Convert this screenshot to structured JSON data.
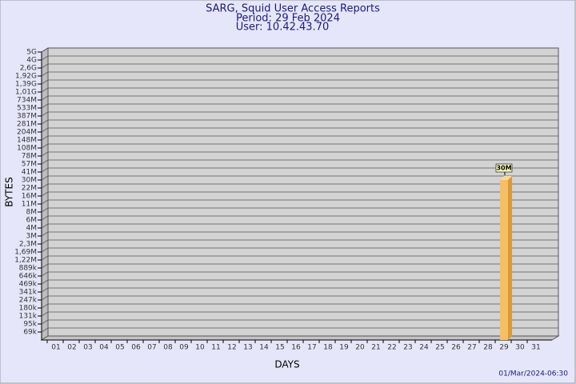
{
  "chart_data": {
    "type": "bar",
    "title": "SARG, Squid User Access Reports",
    "subtitles": [
      "Period: 29 Feb 2024",
      "User: 10.42.43.70"
    ],
    "xlabel": "DAYS",
    "ylabel": "BYTES",
    "footer": "01/Mar/2024-06:30",
    "categories": [
      "01",
      "02",
      "03",
      "04",
      "05",
      "06",
      "07",
      "08",
      "09",
      "10",
      "11",
      "12",
      "13",
      "14",
      "15",
      "16",
      "17",
      "18",
      "19",
      "20",
      "21",
      "22",
      "23",
      "24",
      "25",
      "26",
      "27",
      "28",
      "29",
      "30",
      "31"
    ],
    "values": [
      null,
      null,
      null,
      null,
      null,
      null,
      null,
      null,
      null,
      null,
      null,
      null,
      null,
      null,
      null,
      null,
      null,
      null,
      null,
      null,
      null,
      null,
      null,
      null,
      null,
      null,
      null,
      null,
      30000000,
      null,
      null
    ],
    "value_labels": [
      null,
      null,
      null,
      null,
      null,
      null,
      null,
      null,
      null,
      null,
      null,
      null,
      null,
      null,
      null,
      null,
      null,
      null,
      null,
      null,
      null,
      null,
      null,
      null,
      null,
      null,
      null,
      null,
      "30M",
      null,
      null
    ],
    "color": "#f7bf64",
    "ylim": [
      50000,
      5000000000
    ],
    "yticks": [
      {
        "value": 69000,
        "label": "69k"
      },
      {
        "value": 95000,
        "label": "95k"
      },
      {
        "value": 131000,
        "label": "131k"
      },
      {
        "value": 180000,
        "label": "180k"
      },
      {
        "value": 247000,
        "label": "247k"
      },
      {
        "value": 341000,
        "label": "341k"
      },
      {
        "value": 469000,
        "label": "469k"
      },
      {
        "value": 646000,
        "label": "646k"
      },
      {
        "value": 889000,
        "label": "889k"
      },
      {
        "value": 1220000,
        "label": "1,22M"
      },
      {
        "value": 1690000,
        "label": "1,69M"
      },
      {
        "value": 2300000,
        "label": "2,3M"
      },
      {
        "value": 3000000,
        "label": "3M"
      },
      {
        "value": 4000000,
        "label": "4M"
      },
      {
        "value": 6000000,
        "label": "6M"
      },
      {
        "value": 8000000,
        "label": "8M"
      },
      {
        "value": 11000000,
        "label": "11M"
      },
      {
        "value": 16000000,
        "label": "16M"
      },
      {
        "value": 22000000,
        "label": "22M"
      },
      {
        "value": 30000000,
        "label": "30M"
      },
      {
        "value": 41000000,
        "label": "41M"
      },
      {
        "value": 57000000,
        "label": "57M"
      },
      {
        "value": 78000000,
        "label": "78M"
      },
      {
        "value": 108000000,
        "label": "108M"
      },
      {
        "value": 148000000,
        "label": "148M"
      },
      {
        "value": 204000000,
        "label": "204M"
      },
      {
        "value": 281000000,
        "label": "281M"
      },
      {
        "value": 387000000,
        "label": "387M"
      },
      {
        "value": 533000000,
        "label": "533M"
      },
      {
        "value": 734000000,
        "label": "734M"
      },
      {
        "value": 1010000000,
        "label": "1,01G"
      },
      {
        "value": 1390000000,
        "label": "1,39G"
      },
      {
        "value": 1920000000,
        "label": "1,92G"
      },
      {
        "value": 2600000000,
        "label": "2,6G"
      },
      {
        "value": 4000000000,
        "label": "4G"
      },
      {
        "value": 5000000000,
        "label": "5G"
      }
    ],
    "grid": true
  }
}
